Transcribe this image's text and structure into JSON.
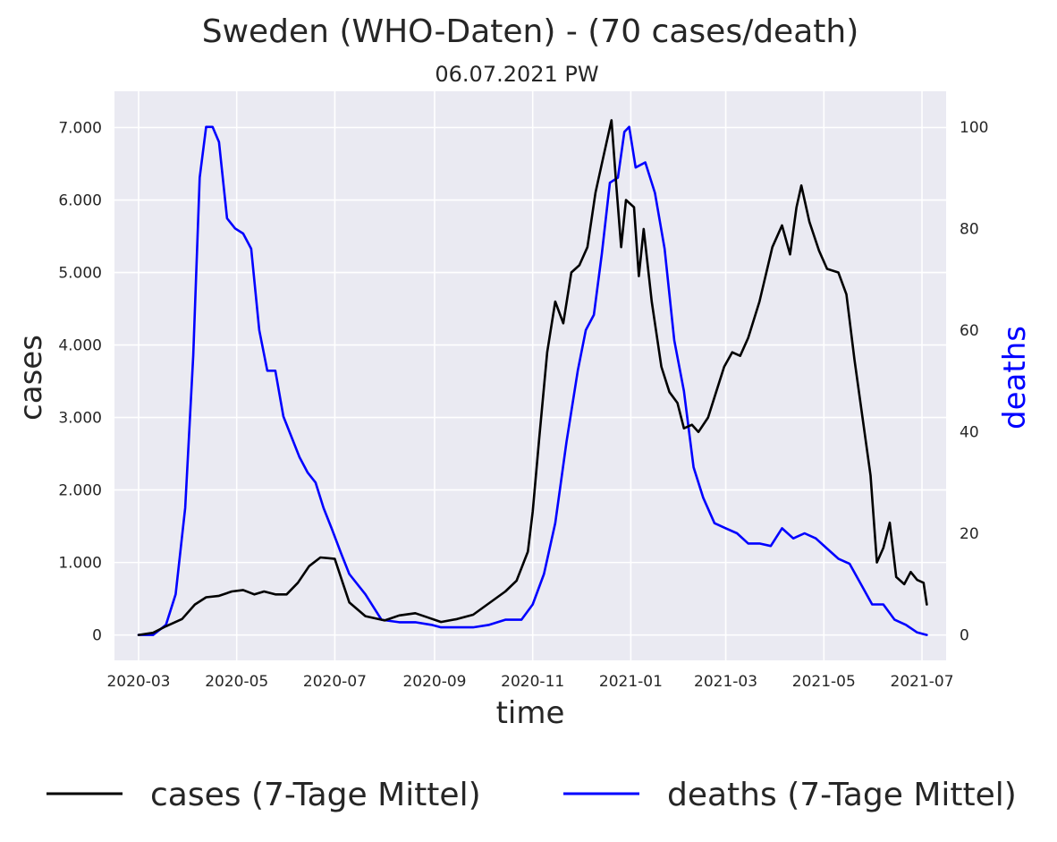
{
  "chart_data": {
    "type": "line",
    "title": "Sweden (WHO-Daten) - (70 cases/death)",
    "subtitle": "06.07.2021 PW",
    "xlabel": "time",
    "ylabel": "cases",
    "y2label": "deaths",
    "xlim": [
      "2020-02-15",
      "2021-07-16"
    ],
    "ylim": [
      -350,
      7500
    ],
    "y2lim": [
      -5,
      107
    ],
    "grid": true,
    "legend_position": "bottom",
    "x_ticks": [
      "2020-03",
      "2020-05",
      "2020-07",
      "2020-09",
      "2020-11",
      "2021-01",
      "2021-03",
      "2021-05",
      "2021-07"
    ],
    "y_ticks": [
      {
        "value": 0,
        "label": "0"
      },
      {
        "value": 1000,
        "label": "1.000"
      },
      {
        "value": 2000,
        "label": "2.000"
      },
      {
        "value": 3000,
        "label": "3.000"
      },
      {
        "value": 4000,
        "label": "4.000"
      },
      {
        "value": 5000,
        "label": "5.000"
      },
      {
        "value": 6000,
        "label": "6.000"
      },
      {
        "value": 7000,
        "label": "7.000"
      }
    ],
    "y2_ticks": [
      0,
      20,
      40,
      60,
      80,
      100
    ],
    "colors": {
      "background": "#eaeaf2",
      "grid": "#ffffff",
      "cases": "#000000",
      "deaths": "#0000ff",
      "y2label": "#0000ff"
    },
    "series": [
      {
        "name": "cases (7-Tage Mittel)",
        "axis": "left",
        "color": "#000000",
        "points": [
          [
            "2020-03-01",
            0
          ],
          [
            "2020-03-10",
            30
          ],
          [
            "2020-03-18",
            120
          ],
          [
            "2020-03-28",
            220
          ],
          [
            "2020-04-05",
            420
          ],
          [
            "2020-04-12",
            520
          ],
          [
            "2020-04-20",
            540
          ],
          [
            "2020-04-28",
            600
          ],
          [
            "2020-05-05",
            620
          ],
          [
            "2020-05-12",
            560
          ],
          [
            "2020-05-18",
            600
          ],
          [
            "2020-05-25",
            560
          ],
          [
            "2020-06-01",
            560
          ],
          [
            "2020-06-08",
            720
          ],
          [
            "2020-06-15",
            950
          ],
          [
            "2020-06-22",
            1070
          ],
          [
            "2020-06-27",
            1060
          ],
          [
            "2020-07-01",
            1050
          ],
          [
            "2020-07-05",
            780
          ],
          [
            "2020-07-10",
            450
          ],
          [
            "2020-07-20",
            260
          ],
          [
            "2020-08-01",
            200
          ],
          [
            "2020-08-10",
            270
          ],
          [
            "2020-08-20",
            300
          ],
          [
            "2020-08-28",
            240
          ],
          [
            "2020-09-05",
            180
          ],
          [
            "2020-09-15",
            220
          ],
          [
            "2020-09-25",
            280
          ],
          [
            "2020-10-05",
            440
          ],
          [
            "2020-10-15",
            600
          ],
          [
            "2020-10-22",
            750
          ],
          [
            "2020-10-29",
            1150
          ],
          [
            "2020-11-01",
            1700
          ],
          [
            "2020-11-05",
            2700
          ],
          [
            "2020-11-10",
            3900
          ],
          [
            "2020-11-15",
            4600
          ],
          [
            "2020-11-20",
            4300
          ],
          [
            "2020-11-25",
            5000
          ],
          [
            "2020-11-30",
            5100
          ],
          [
            "2020-12-05",
            5350
          ],
          [
            "2020-12-10",
            6100
          ],
          [
            "2020-12-15",
            6600
          ],
          [
            "2020-12-20",
            7100
          ],
          [
            "2020-12-23",
            6200
          ],
          [
            "2020-12-26",
            5350
          ],
          [
            "2020-12-29",
            6000
          ],
          [
            "2021-01-03",
            5900
          ],
          [
            "2021-01-06",
            4950
          ],
          [
            "2021-01-09",
            5600
          ],
          [
            "2021-01-14",
            4600
          ],
          [
            "2021-01-20",
            3700
          ],
          [
            "2021-01-25",
            3350
          ],
          [
            "2021-01-30",
            3200
          ],
          [
            "2021-02-03",
            2850
          ],
          [
            "2021-02-08",
            2900
          ],
          [
            "2021-02-12",
            2800
          ],
          [
            "2021-02-18",
            3000
          ],
          [
            "2021-02-23",
            3350
          ],
          [
            "2021-02-28",
            3700
          ],
          [
            "2021-03-05",
            3900
          ],
          [
            "2021-03-10",
            3850
          ],
          [
            "2021-03-15",
            4100
          ],
          [
            "2021-03-22",
            4600
          ],
          [
            "2021-03-30",
            5350
          ],
          [
            "2021-04-05",
            5650
          ],
          [
            "2021-04-10",
            5250
          ],
          [
            "2021-04-14",
            5900
          ],
          [
            "2021-04-17",
            6200
          ],
          [
            "2021-04-22",
            5700
          ],
          [
            "2021-04-28",
            5300
          ],
          [
            "2021-05-03",
            5050
          ],
          [
            "2021-05-10",
            5000
          ],
          [
            "2021-05-15",
            4700
          ],
          [
            "2021-05-20",
            3800
          ],
          [
            "2021-05-25",
            3000
          ],
          [
            "2021-05-30",
            2200
          ],
          [
            "2021-06-03",
            1000
          ],
          [
            "2021-06-07",
            1200
          ],
          [
            "2021-06-11",
            1550
          ],
          [
            "2021-06-15",
            800
          ],
          [
            "2021-06-20",
            700
          ],
          [
            "2021-06-24",
            870
          ],
          [
            "2021-06-28",
            760
          ],
          [
            "2021-07-02",
            720
          ],
          [
            "2021-07-04",
            420
          ]
        ]
      },
      {
        "name": "deaths (7-Tage Mittel)",
        "axis": "right",
        "color": "#0000ff",
        "points": [
          [
            "2020-03-01",
            0
          ],
          [
            "2020-03-10",
            0
          ],
          [
            "2020-03-18",
            2
          ],
          [
            "2020-03-24",
            8
          ],
          [
            "2020-03-30",
            25
          ],
          [
            "2020-04-04",
            55
          ],
          [
            "2020-04-08",
            90
          ],
          [
            "2020-04-12",
            100
          ],
          [
            "2020-04-16",
            100
          ],
          [
            "2020-04-20",
            97
          ],
          [
            "2020-04-25",
            82
          ],
          [
            "2020-04-30",
            80
          ],
          [
            "2020-05-05",
            79
          ],
          [
            "2020-05-10",
            76
          ],
          [
            "2020-05-15",
            60
          ],
          [
            "2020-05-20",
            52
          ],
          [
            "2020-05-25",
            52
          ],
          [
            "2020-05-30",
            43
          ],
          [
            "2020-06-04",
            39
          ],
          [
            "2020-06-09",
            35
          ],
          [
            "2020-06-14",
            32
          ],
          [
            "2020-06-19",
            30
          ],
          [
            "2020-06-24",
            25
          ],
          [
            "2020-06-29",
            21
          ],
          [
            "2020-07-05",
            16
          ],
          [
            "2020-07-10",
            12
          ],
          [
            "2020-07-20",
            8
          ],
          [
            "2020-07-30",
            3
          ],
          [
            "2020-08-10",
            2.5
          ],
          [
            "2020-08-20",
            2.5
          ],
          [
            "2020-08-30",
            2
          ],
          [
            "2020-09-05",
            1.5
          ],
          [
            "2020-09-15",
            1.5
          ],
          [
            "2020-09-25",
            1.5
          ],
          [
            "2020-10-05",
            2
          ],
          [
            "2020-10-15",
            3
          ],
          [
            "2020-10-25",
            3
          ],
          [
            "2020-11-01",
            6
          ],
          [
            "2020-11-08",
            12
          ],
          [
            "2020-11-15",
            22
          ],
          [
            "2020-11-22",
            38
          ],
          [
            "2020-11-29",
            52
          ],
          [
            "2020-12-04",
            60
          ],
          [
            "2020-12-09",
            63
          ],
          [
            "2020-12-14",
            75
          ],
          [
            "2020-12-19",
            89
          ],
          [
            "2020-12-24",
            90
          ],
          [
            "2020-12-28",
            99
          ],
          [
            "2020-12-31",
            100
          ],
          [
            "2021-01-04",
            92
          ],
          [
            "2021-01-10",
            93
          ],
          [
            "2021-01-16",
            87
          ],
          [
            "2021-01-22",
            76
          ],
          [
            "2021-01-28",
            58
          ],
          [
            "2021-02-03",
            48
          ],
          [
            "2021-02-09",
            33
          ],
          [
            "2021-02-15",
            27
          ],
          [
            "2021-02-22",
            22
          ],
          [
            "2021-03-01",
            21
          ],
          [
            "2021-03-08",
            20
          ],
          [
            "2021-03-15",
            18
          ],
          [
            "2021-03-22",
            18
          ],
          [
            "2021-03-29",
            17.5
          ],
          [
            "2021-04-05",
            21
          ],
          [
            "2021-04-12",
            19
          ],
          [
            "2021-04-19",
            20
          ],
          [
            "2021-04-26",
            19
          ],
          [
            "2021-05-03",
            17
          ],
          [
            "2021-05-10",
            15
          ],
          [
            "2021-05-17",
            14
          ],
          [
            "2021-05-24",
            10
          ],
          [
            "2021-05-31",
            6
          ],
          [
            "2021-06-07",
            6
          ],
          [
            "2021-06-14",
            3
          ],
          [
            "2021-06-21",
            2
          ],
          [
            "2021-06-28",
            0.5
          ],
          [
            "2021-07-04",
            0
          ]
        ]
      }
    ]
  }
}
